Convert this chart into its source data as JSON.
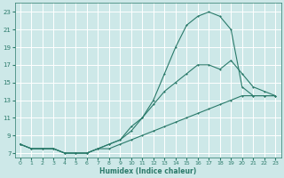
{
  "xlabel": "Humidex (Indice chaleur)",
  "ylabel": "",
  "bg_color": "#cde8e8",
  "grid_color": "#b0d8d8",
  "line_color": "#2a7a6a",
  "xlim": [
    -0.5,
    23.5
  ],
  "ylim": [
    6.5,
    24
  ],
  "xticks": [
    0,
    1,
    2,
    3,
    4,
    5,
    6,
    7,
    8,
    9,
    10,
    11,
    12,
    13,
    14,
    15,
    16,
    17,
    18,
    19,
    20,
    21,
    22,
    23
  ],
  "yticks": [
    7,
    9,
    11,
    13,
    15,
    17,
    19,
    21,
    23
  ],
  "curve_top_x": [
    0,
    1,
    2,
    3,
    4,
    5,
    6,
    7,
    8,
    9,
    10,
    11,
    12,
    13,
    14,
    15,
    16,
    17,
    18,
    19,
    20,
    21,
    22,
    23
  ],
  "curve_top_y": [
    8,
    7.5,
    7.5,
    7.5,
    7,
    7,
    7,
    7.5,
    8,
    8.5,
    9.5,
    11,
    13,
    16,
    19,
    21.5,
    22.5,
    23,
    22.5,
    21,
    14.5,
    13.5,
    13.5,
    13.5
  ],
  "curve_mid_x": [
    0,
    1,
    2,
    3,
    4,
    5,
    6,
    7,
    8,
    9,
    10,
    11,
    12,
    13,
    14,
    15,
    16,
    17,
    18,
    19,
    20,
    21,
    22,
    23
  ],
  "curve_mid_y": [
    8,
    7.5,
    7.5,
    7.5,
    7,
    7,
    7,
    7.5,
    8,
    8.5,
    10,
    11,
    12.5,
    14,
    15,
    16,
    17,
    17,
    16.5,
    17.5,
    16,
    14.5,
    14,
    13.5
  ],
  "curve_bot_x": [
    0,
    1,
    2,
    3,
    4,
    5,
    6,
    7,
    8,
    9,
    10,
    11,
    12,
    13,
    14,
    15,
    16,
    17,
    18,
    19,
    20,
    21,
    22,
    23
  ],
  "curve_bot_y": [
    8,
    7.5,
    7.5,
    7.5,
    7,
    7,
    7,
    7.5,
    7.5,
    8,
    8.5,
    9,
    9.5,
    10,
    10.5,
    11,
    11.5,
    12,
    12.5,
    13,
    13.5,
    13.5,
    13.5,
    13.5
  ]
}
